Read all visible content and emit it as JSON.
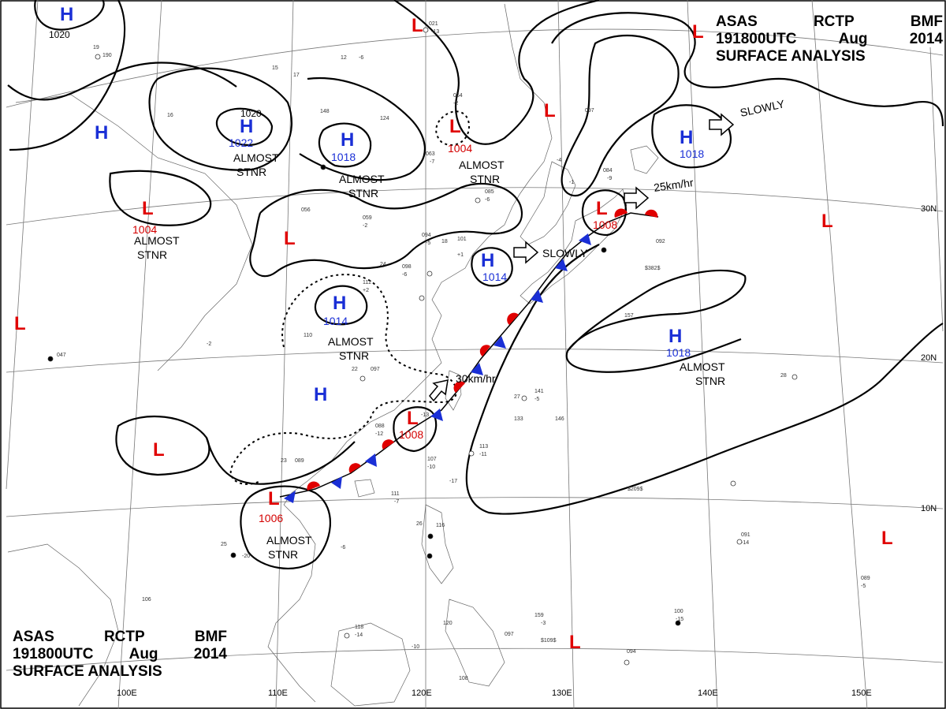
{
  "header": {
    "line1": [
      "ASAS",
      "RCTP",
      "BMF"
    ],
    "line2": [
      "191800UTC",
      "Aug",
      "2014"
    ],
    "line3": "SURFACE ANALYSIS"
  },
  "grid_labels": {
    "latitudes": [
      "30N",
      "20N",
      "10N"
    ],
    "longitudes": [
      "100E",
      "110E",
      "120E",
      "130E",
      "140E",
      "150E"
    ]
  },
  "pressure_systems": [
    {
      "type": "H",
      "pressure": "1020"
    },
    {
      "type": "H",
      "pressure": "1022",
      "isobar_label": "1020"
    },
    {
      "type": "H",
      "pressure": "1018"
    },
    {
      "type": "H",
      "pressure": "1014"
    },
    {
      "type": "H",
      "pressure": "1014"
    },
    {
      "type": "H",
      "pressure": ""
    },
    {
      "type": "H",
      "pressure": ""
    },
    {
      "type": "H",
      "pressure": "1018"
    },
    {
      "type": "H",
      "pressure": "1018"
    },
    {
      "type": "L",
      "pressure": "1004"
    },
    {
      "type": "L",
      "pressure": "1004"
    },
    {
      "type": "L",
      "pressure": "1008"
    },
    {
      "type": "L",
      "pressure": "1008"
    },
    {
      "type": "L",
      "pressure": "1006"
    },
    {
      "type": "L",
      "pressure": ""
    }
  ],
  "annotations": {
    "almost_stnr": "ALMOST STNR",
    "almost_stnr_line1": "ALMOST",
    "almost_stnr_line2": "STNR",
    "slowly": "SLOWLY",
    "speed_25": "25km/hr",
    "speed_30": "30km/hr"
  },
  "station_plots": [
    "021",
    "-13",
    "19",
    "190",
    "15",
    "17",
    "12",
    "-6",
    "148",
    "124",
    "064",
    "-2",
    "063",
    "-7",
    "097",
    "-4",
    "-1",
    "056",
    "059",
    "-2",
    "094",
    "-5",
    "101",
    "+1",
    "085",
    "-6",
    "084",
    "-9",
    "092",
    "$382$",
    "-2",
    "112",
    "+2",
    "098",
    "-6",
    "24",
    "110",
    "097",
    "-13",
    "-12",
    "088",
    "157",
    "-5",
    "141",
    "133",
    "146",
    "113",
    "-11",
    "107",
    "-10",
    "-17",
    "111",
    "089",
    "$209$",
    "091",
    "-14",
    "089",
    "-5",
    "100",
    "-15",
    "118",
    "-14",
    "120",
    "-10",
    "159",
    "097",
    "094",
    "108",
    "106",
    "116",
    "-20",
    "047",
    "$109$",
    "-3",
    "-6",
    "-7",
    "26",
    "27",
    "28",
    "25",
    "22",
    "23",
    "18",
    "16"
  ],
  "colors": {
    "high": "#1a2fd6",
    "low": "#e00000",
    "cold_front": "#1a2fd6",
    "warm_front": "#e00000",
    "isobar": "#000000",
    "coastline": "#666666",
    "grid": "#777777"
  }
}
